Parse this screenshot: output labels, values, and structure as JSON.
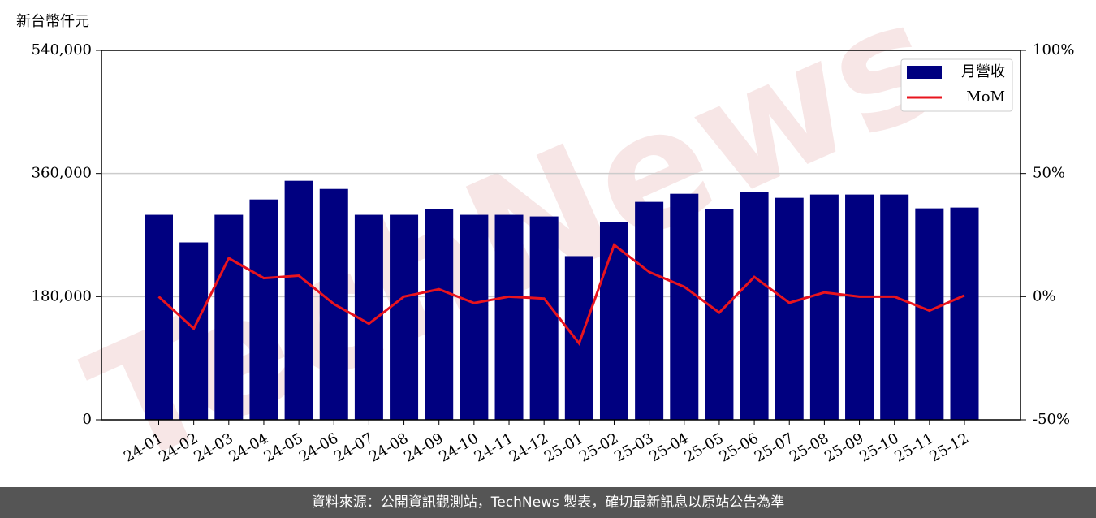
{
  "chart_data": {
    "type": "bar-line",
    "y_label": "新台幣仟元",
    "watermark": "TechNews",
    "categories": [
      "24-01",
      "24-02",
      "24-03",
      "24-04",
      "24-05",
      "24-06",
      "24-07",
      "24-08",
      "24-09",
      "24-10",
      "24-11",
      "24-12",
      "25-01",
      "25-02",
      "25-03",
      "25-04",
      "25-05",
      "25-06",
      "25-07",
      "25-08",
      "25-09",
      "25-10",
      "25-11",
      "25-12"
    ],
    "series": [
      {
        "name": "月營收",
        "type": "bar",
        "color": "#000080",
        "values": [
          299600,
          259300,
          299600,
          322000,
          349300,
          337400,
          299600,
          299600,
          307800,
          299600,
          299600,
          297200,
          239200,
          288900,
          318500,
          330300,
          307800,
          332700,
          324400,
          329200,
          329200,
          329200,
          309000,
          310200
        ]
      },
      {
        "name": "MoM",
        "type": "line",
        "axis": "y2",
        "color": "#e8141e",
        "values": [
          0,
          -13,
          15.6,
          7.5,
          8.5,
          -3,
          -11,
          0,
          3,
          -2.6,
          0,
          -0.8,
          -19,
          21,
          10,
          4,
          -6.5,
          8,
          -2.5,
          1.7,
          0,
          0,
          -5.7,
          0.5
        ]
      }
    ],
    "ylim": [
      0,
      540000
    ],
    "yticks": [
      0,
      {
        "value": 180000,
        "label": "180,000"
      },
      {
        "value": 360000,
        "label": "360,000"
      },
      {
        "value": 540000,
        "label": "540,000"
      }
    ],
    "y2lim": [
      -50,
      100
    ],
    "y2ticks": [
      {
        "value": -50,
        "label": "-50%"
      },
      {
        "value": 0,
        "label": "0%"
      },
      {
        "value": 50,
        "label": "50%"
      },
      {
        "value": 100,
        "label": "100%"
      }
    ],
    "grid": true,
    "legend": "upper right",
    "footer": "資料來源：公開資訊觀測站，TechNews 製表，確切最新訊息以原站公告為準"
  }
}
